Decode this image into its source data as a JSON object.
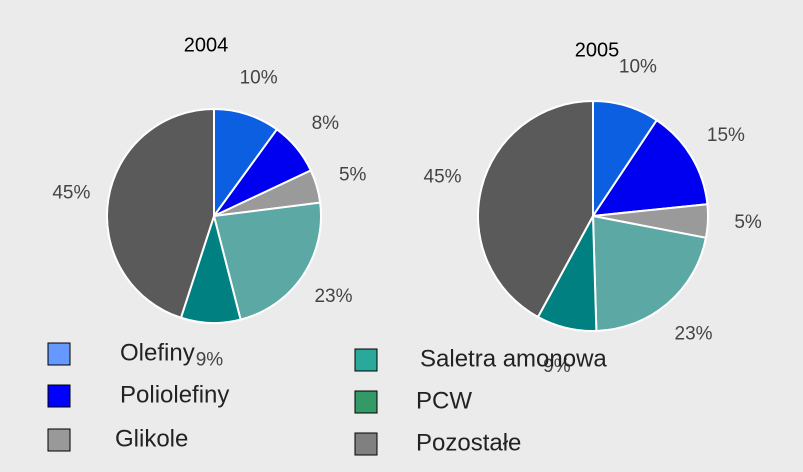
{
  "chart_data": [
    {
      "type": "pie",
      "title": "2004",
      "values": [
        10,
        8,
        5,
        23,
        9,
        45
      ],
      "value_labels": [
        "10%",
        "8%",
        "5%",
        "23%",
        "9%",
        "45%"
      ],
      "colors": [
        "#0b5fe0",
        "#0000f0",
        "#9a9a9a",
        "#5ba8a4",
        "#008080",
        "#5a5a5a"
      ]
    },
    {
      "type": "pie",
      "title": "2005",
      "values": [
        10,
        15,
        5,
        23,
        9,
        45
      ],
      "value_labels": [
        "10%",
        "15%",
        "5%",
        "23%",
        "9%",
        "45%"
      ],
      "colors": [
        "#0b5fe0",
        "#0000f0",
        "#9a9a9a",
        "#5ba8a4",
        "#008080",
        "#5a5a5a"
      ]
    }
  ],
  "legend": {
    "labels": [
      "Olefiny",
      "Poliolefiny",
      "Glikole",
      "Saletra amonowa",
      "PCW",
      "Pozostałe"
    ],
    "colors": [
      "#6699ff",
      "#0000ff",
      "#999999",
      "#2aa89a",
      "#339966",
      "#808080"
    ]
  }
}
